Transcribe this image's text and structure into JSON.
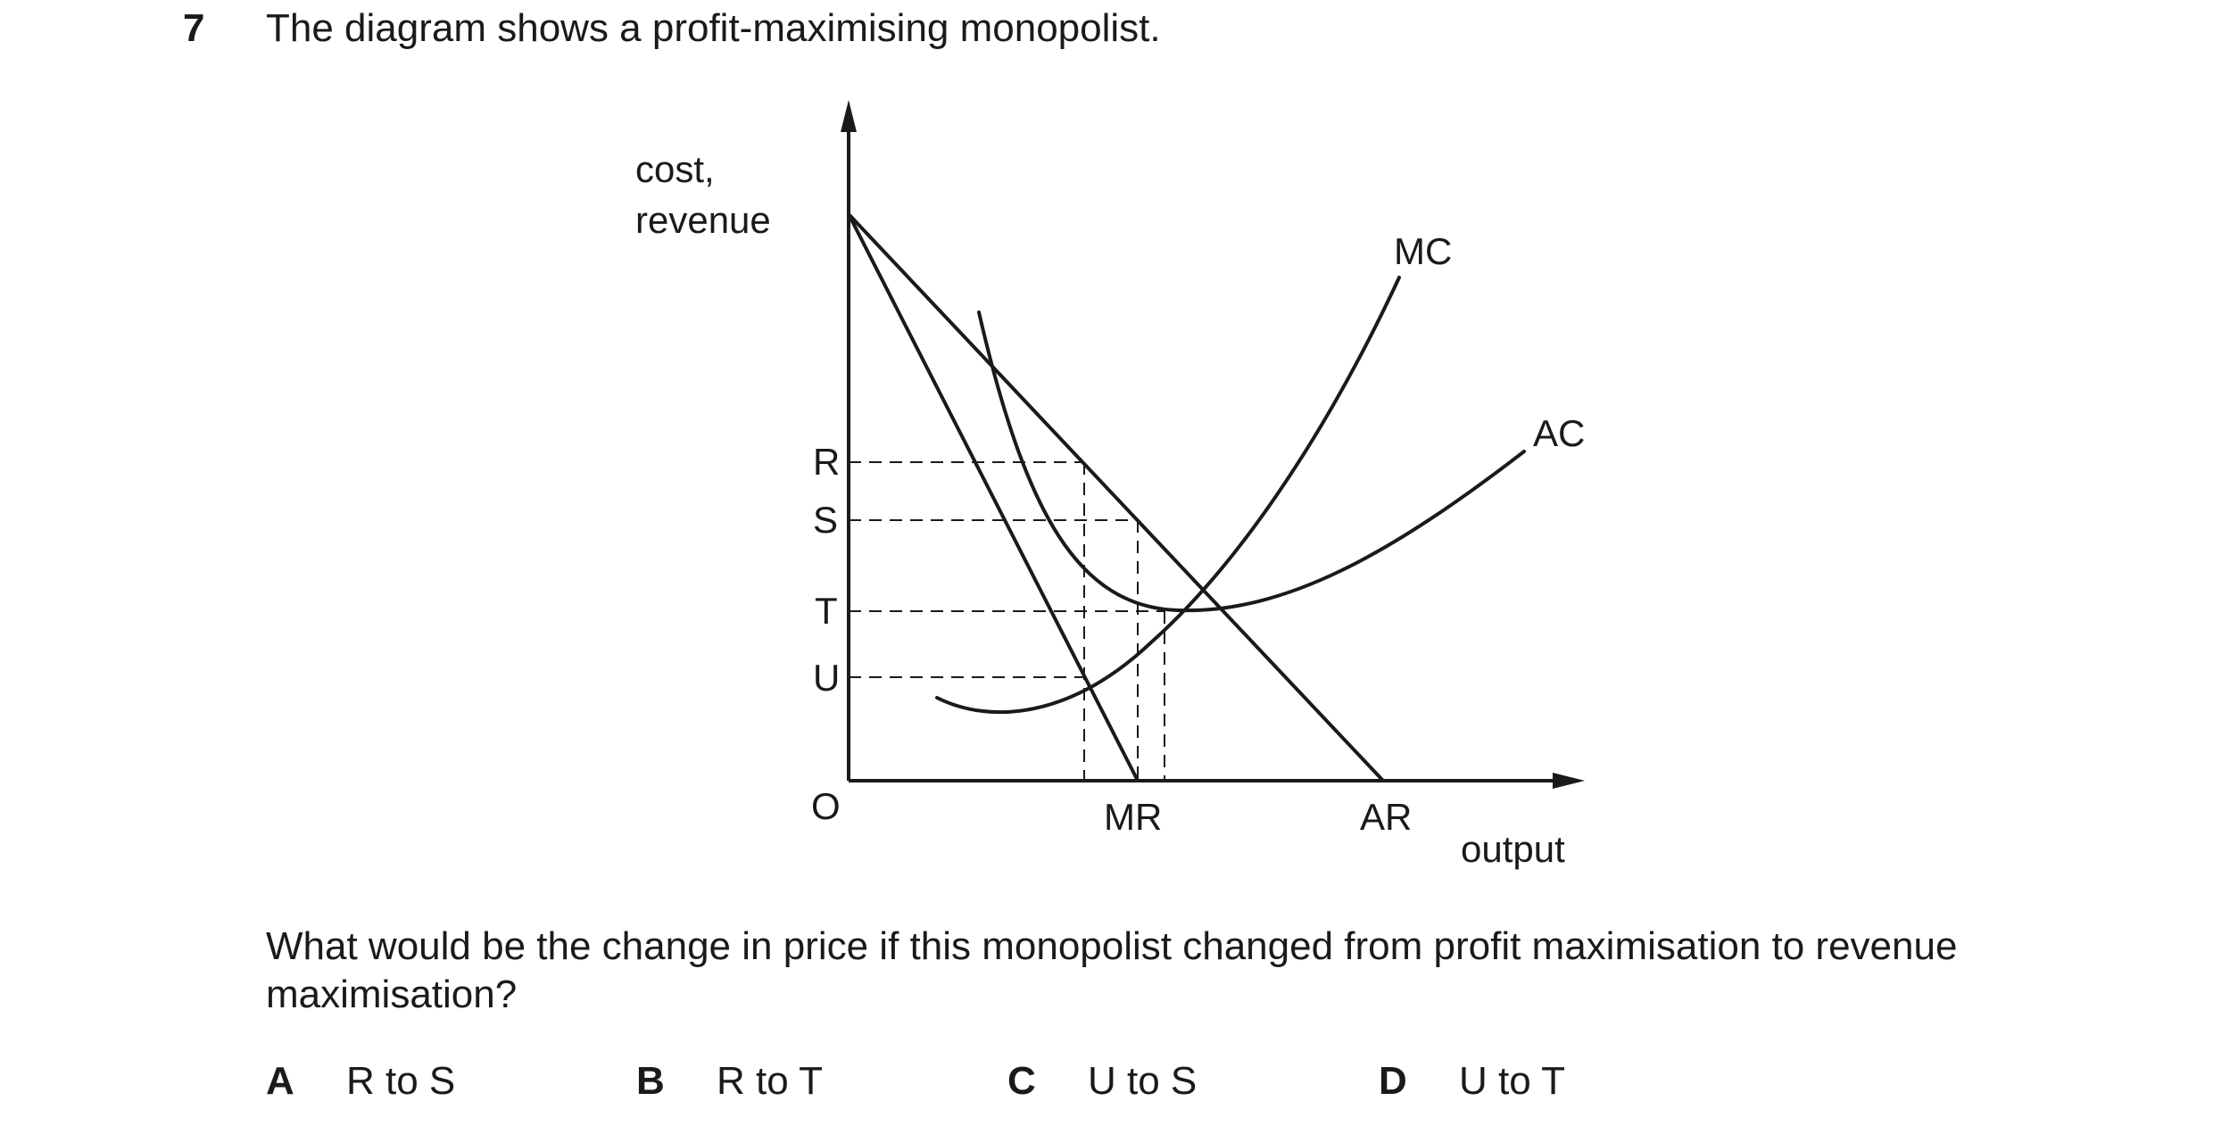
{
  "question_number": "7",
  "intro": "The diagram shows a profit-maximising monopolist.",
  "diagram": {
    "y_axis_label_line1": "cost,",
    "y_axis_label_line2": "revenue",
    "x_axis_label": "output",
    "origin_label": "O",
    "price_levels": [
      "R",
      "S",
      "T",
      "U"
    ],
    "curve_labels": {
      "mc": "MC",
      "ac": "AC",
      "mr": "MR",
      "ar": "AR"
    }
  },
  "question": "What would be the change in price if this monopolist changed from profit maximisation to revenue maximisation?",
  "options": [
    {
      "letter": "A",
      "text": "R to S"
    },
    {
      "letter": "B",
      "text": "R to T"
    },
    {
      "letter": "C",
      "text": "U to S"
    },
    {
      "letter": "D",
      "text": "U to T"
    }
  ]
}
